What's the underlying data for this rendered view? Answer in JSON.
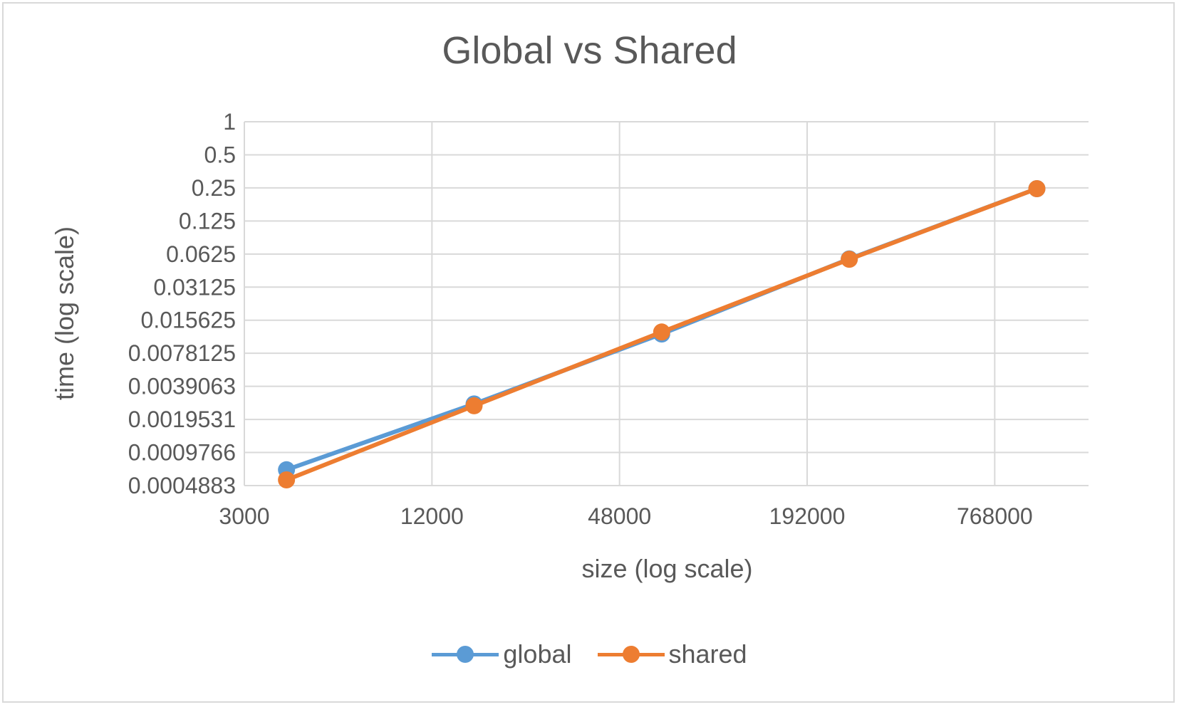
{
  "chart_data": {
    "type": "line",
    "title": "Global vs Shared",
    "xlabel": "size (log scale)",
    "ylabel": "time (log scale)",
    "x_scale": "log2",
    "y_scale": "log2",
    "xlim": [
      3000,
      1536000
    ],
    "ylim": [
      0.00048828125,
      1
    ],
    "x_ticks": [
      "3000",
      "12000",
      "48000",
      "192000",
      "768000"
    ],
    "y_ticks": [
      "1",
      "0.5",
      "0.25",
      "0.125",
      "0.0625",
      "0.03125",
      "0.015625",
      "0.0078125",
      "0.0039063",
      "0.0019531",
      "0.0009766",
      "0.0004883"
    ],
    "grid": true,
    "legend": "bottom",
    "series": [
      {
        "name": "global",
        "color": "#5b9bd5",
        "x": [
          4096,
          16384,
          65536,
          262144,
          1048576
        ],
        "y": [
          0.00068,
          0.0027,
          0.0117,
          0.0565,
          0.246
        ]
      },
      {
        "name": "shared",
        "color": "#ed7d31",
        "x": [
          4096,
          16384,
          65536,
          262144,
          1048576
        ],
        "y": [
          0.00055,
          0.0026,
          0.0122,
          0.056,
          0.246
        ]
      }
    ]
  }
}
